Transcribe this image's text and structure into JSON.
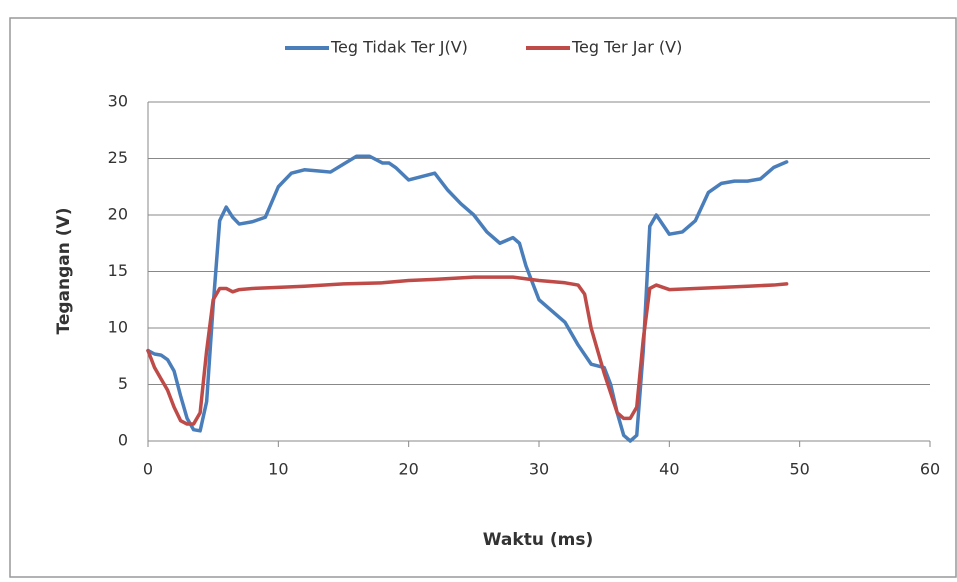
{
  "chart_data": {
    "type": "line",
    "xlabel": "Waktu (ms)",
    "ylabel": "Tegangan (V)",
    "xlim": [
      0,
      60
    ],
    "xticks": [
      0,
      10,
      20,
      30,
      40,
      50,
      60
    ],
    "ylim": [
      0,
      30
    ],
    "yticks": [
      0,
      5,
      10,
      15,
      20,
      25,
      30
    ],
    "grid": true,
    "legend": "top",
    "series": [
      {
        "name": "Teg Tidak Ter J(V)",
        "color": "#4a7ebb",
        "x": [
          0,
          0.5,
          1,
          1.5,
          2,
          2.5,
          3,
          3.5,
          4,
          4.5,
          5,
          5.5,
          6,
          6.5,
          7,
          8,
          9,
          10,
          11,
          12,
          13,
          14,
          15,
          16,
          17,
          18,
          18.5,
          19,
          20,
          21,
          22,
          23,
          24,
          25,
          26,
          27,
          28,
          28.5,
          29,
          30,
          31,
          32,
          33,
          34,
          35,
          35.5,
          36,
          36.5,
          37,
          37.5,
          38,
          38.5,
          39,
          40,
          41,
          42,
          43,
          44,
          45,
          46,
          47,
          48,
          49
        ],
        "values": [
          8,
          7.7,
          7.6,
          7.2,
          6.2,
          4,
          2,
          1,
          0.9,
          3.5,
          12,
          19.5,
          20.7,
          19.8,
          19.2,
          19.4,
          19.8,
          22.5,
          23.7,
          24,
          23.9,
          23.8,
          24.5,
          25.2,
          25.2,
          24.6,
          24.6,
          24.2,
          23.1,
          23.4,
          23.7,
          22.2,
          21,
          20,
          18.5,
          17.5,
          18,
          17.5,
          15.5,
          12.5,
          11.5,
          10.5,
          8.5,
          6.8,
          6.5,
          5,
          2.5,
          0.5,
          0,
          0.5,
          8,
          19,
          20,
          18.3,
          18.5,
          19.5,
          22,
          22.8,
          23,
          23,
          23.2,
          24.2,
          24.7
        ]
      },
      {
        "name": "Teg Ter Jar (V)",
        "color": "#be4b48",
        "x": [
          0,
          0.5,
          1,
          1.5,
          2,
          2.5,
          3,
          3.5,
          4,
          4.5,
          5,
          5.5,
          6,
          6.5,
          7,
          8,
          10,
          12,
          15,
          18,
          20,
          22,
          25,
          28,
          30,
          32,
          33,
          33.5,
          34,
          35,
          36,
          36.5,
          37,
          37.5,
          38,
          38.5,
          39,
          40,
          42,
          44,
          46,
          48,
          49
        ],
        "values": [
          8,
          6.5,
          5.5,
          4.5,
          3,
          1.8,
          1.5,
          1.5,
          2.5,
          8,
          12.5,
          13.5,
          13.5,
          13.2,
          13.4,
          13.5,
          13.6,
          13.7,
          13.9,
          14,
          14.2,
          14.3,
          14.5,
          14.5,
          14.2,
          14,
          13.8,
          13,
          10,
          6,
          2.5,
          2,
          2,
          3,
          9,
          13.5,
          13.8,
          13.4,
          13.5,
          13.6,
          13.7,
          13.8,
          13.9
        ]
      }
    ]
  }
}
